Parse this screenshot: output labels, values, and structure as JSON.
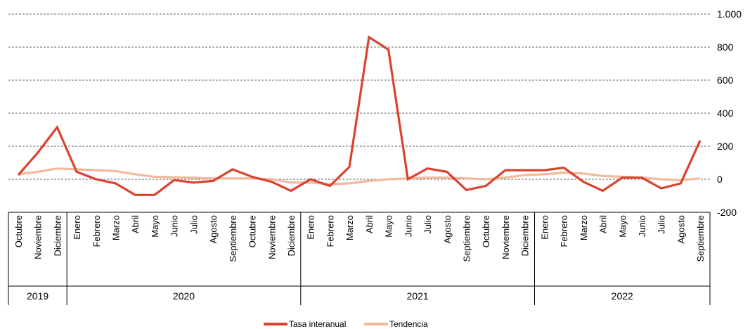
{
  "chart_data": {
    "type": "line",
    "title": "",
    "xlabel": "",
    "ylabel": "",
    "ylim": [
      -200,
      1000
    ],
    "yticks": [
      -200,
      0,
      200,
      400,
      600,
      800,
      1000
    ],
    "ytick_labels": [
      "-200",
      "0",
      "200",
      "400",
      "600",
      "800",
      "1.000"
    ],
    "grid": "horizontal dashed",
    "legend_position": "bottom-center",
    "categories": [
      "Octubre",
      "Noviembre",
      "Diciembre",
      "Enero",
      "Febrero",
      "Marzo",
      "Abril",
      "Mayo",
      "Junio",
      "Julio",
      "Agosto",
      "Septiembre",
      "Octubre",
      "Noviembre",
      "Diciembre",
      "Enero",
      "Febrero",
      "Marzo",
      "Abril",
      "Mayo",
      "Junio",
      "Julio",
      "Agosto",
      "Septiembre",
      "Octubre",
      "Noviembre",
      "Diciembre",
      "Enero",
      "Febrero",
      "Marzo",
      "Abril",
      "Mayo",
      "Junio",
      "Julio",
      "Agosto",
      "Septiembre"
    ],
    "years": [
      {
        "label": "2019",
        "start": 0,
        "count": 3
      },
      {
        "label": "2020",
        "start": 3,
        "count": 12
      },
      {
        "label": "2021",
        "start": 15,
        "count": 12
      },
      {
        "label": "2022",
        "start": 27,
        "count": 9
      }
    ],
    "series": [
      {
        "name": "Tasa interanual",
        "color": "#d9432f",
        "values": [
          25,
          160,
          315,
          45,
          0,
          -25,
          -95,
          -95,
          -5,
          -20,
          -10,
          60,
          15,
          -15,
          -70,
          0,
          -40,
          75,
          860,
          785,
          0,
          65,
          45,
          -65,
          -40,
          55,
          55,
          55,
          70,
          -15,
          -70,
          10,
          10,
          -55,
          -25,
          235
        ]
      },
      {
        "name": "Tendencia",
        "color": "#f3b99a",
        "values": [
          30,
          45,
          65,
          60,
          55,
          50,
          30,
          15,
          12,
          10,
          5,
          5,
          5,
          0,
          -20,
          -20,
          -30,
          -25,
          -10,
          0,
          5,
          10,
          10,
          5,
          0,
          10,
          25,
          30,
          40,
          35,
          20,
          15,
          10,
          0,
          -5,
          5
        ]
      }
    ]
  }
}
